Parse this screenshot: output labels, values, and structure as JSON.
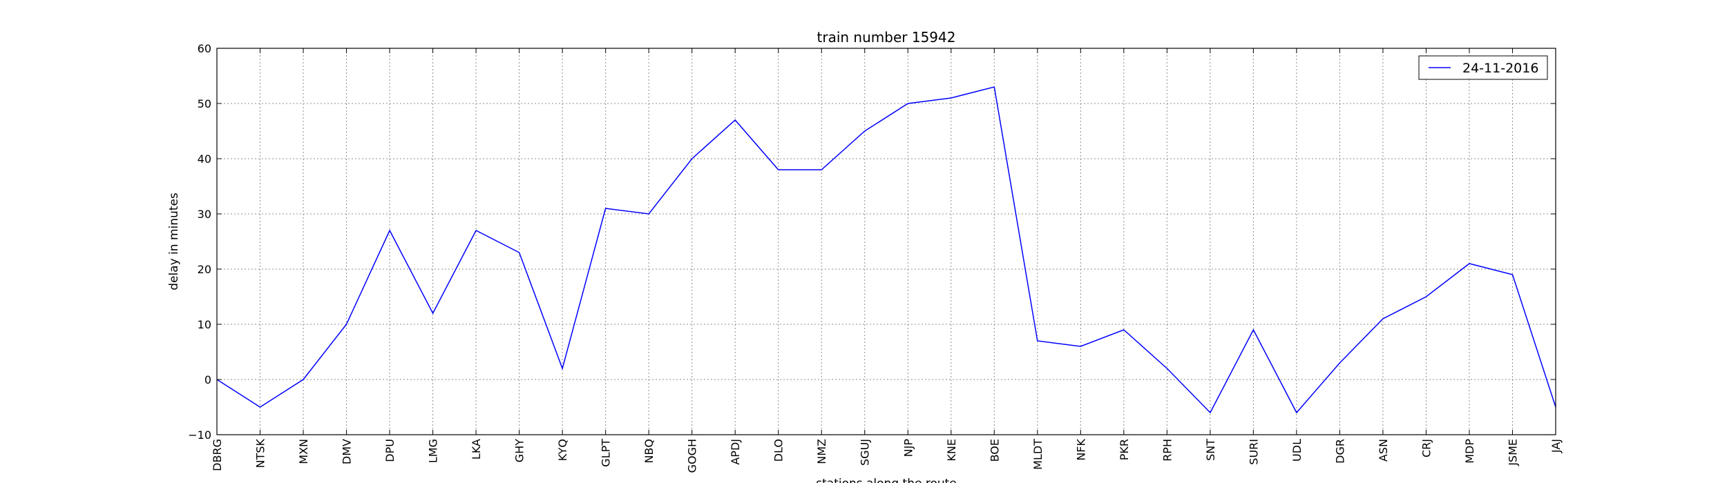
{
  "chart_data": {
    "type": "line",
    "title": "train number 15942",
    "xlabel": "stations along the route",
    "ylabel": "delay in minutes",
    "ylim": [
      -10,
      60
    ],
    "yticks": [
      -10,
      0,
      10,
      20,
      30,
      40,
      50,
      60
    ],
    "grid": true,
    "legend_position": "top-right",
    "categories": [
      "DBRG",
      "NTSK",
      "MXN",
      "DMV",
      "DPU",
      "LMG",
      "LKA",
      "GHY",
      "KYQ",
      "GLPT",
      "NBQ",
      "GOGH",
      "APDJ",
      "DLO",
      "NMZ",
      "SGUJ",
      "NJP",
      "KNE",
      "BOE",
      "MLDT",
      "NFK",
      "PKR",
      "RPH",
      "SNT",
      "SURI",
      "UDL",
      "DGR",
      "ASN",
      "CRJ",
      "MDP",
      "JSME",
      "JAJ"
    ],
    "series": [
      {
        "name": "24-11-2016",
        "color": "#0000ff",
        "values": [
          0,
          -5,
          0,
          10,
          27,
          12,
          27,
          23,
          2,
          31,
          30,
          40,
          47,
          38,
          38,
          45,
          50,
          51,
          53,
          7,
          6,
          9,
          2,
          -6,
          9,
          -6,
          3,
          11,
          15,
          21,
          19,
          -5
        ]
      }
    ]
  }
}
